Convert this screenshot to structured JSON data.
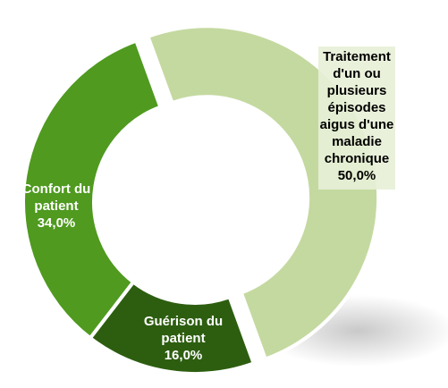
{
  "chart_data": {
    "type": "donut",
    "categories": [
      "Traitement d'un ou plusieurs épisodes aigus d'une maladie chronique",
      "Guérison du patient",
      "Confort du patient"
    ],
    "values": [
      50,
      16,
      34
    ],
    "value_labels": [
      "50,0%",
      "16,0%",
      "34,0%"
    ],
    "colors": [
      "#c4d9a0",
      "#2d5e10",
      "#4f9a1f"
    ]
  }
}
